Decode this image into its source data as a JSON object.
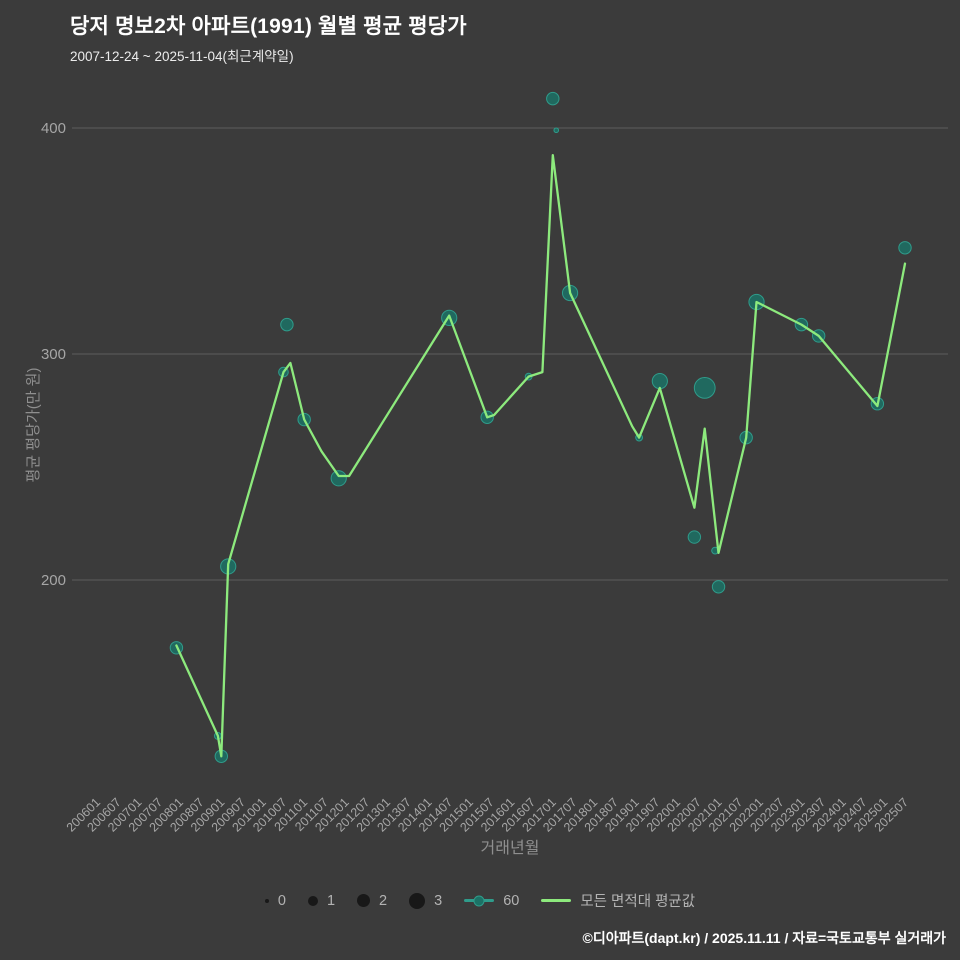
{
  "page": {
    "footer_credit": "©디아파트(dapt.kr) / 2025.11.11 / 자료=국토교통부 실거래가"
  },
  "chart_data": {
    "type": "line-scatter-bubble",
    "title": "당저 명보2차 아파트(1991) 월별 평균 평당가",
    "subtitle": "2007-12-24 ~ 2025-11-04(최근계약일)",
    "xlabel": "거래년월",
    "ylabel": "평균 평당가(만 원)",
    "ylim": [
      100,
      430
    ],
    "y_ticks": [
      200,
      300,
      400
    ],
    "grid": "horizontal",
    "x_ticks": [
      "200601",
      "200607",
      "200701",
      "200707",
      "200801",
      "200807",
      "200901",
      "200907",
      "201001",
      "201007",
      "201101",
      "201107",
      "201201",
      "201207",
      "201301",
      "201307",
      "201401",
      "201407",
      "201501",
      "201507",
      "201601",
      "201607",
      "201701",
      "201707",
      "201801",
      "201807",
      "201901",
      "201907",
      "202001",
      "202007",
      "202101",
      "202107",
      "202201",
      "202207",
      "202301",
      "202307",
      "202401",
      "202407",
      "202501",
      "202507"
    ],
    "legend": {
      "position": "bottom",
      "size_labels": [
        "0",
        "1",
        "2",
        "3"
      ],
      "series_labels": [
        "60",
        "모든 면적대 평균값"
      ]
    },
    "colors": {
      "background": "#3b3b3b",
      "line_green": "#8dea7d",
      "marker_teal_fill": "#1c7266",
      "marker_teal_stroke": "#2f9c8b",
      "grid": "#5d5d5d",
      "tick_text": "#a6a6a6",
      "axis_label": "#8f8f8f",
      "legend_text": "#b3b3b3",
      "legend_bubble": "#181818",
      "title_text": "#ffffff"
    },
    "series": [
      {
        "name": "60",
        "type": "scatter",
        "points": [
          {
            "m": "200712",
            "v": 170,
            "s": 1.5
          },
          {
            "m": "200812",
            "v": 131,
            "s": 0.5
          },
          {
            "m": "200901",
            "v": 122,
            "s": 1.5
          },
          {
            "m": "200903",
            "v": 206,
            "s": 2
          },
          {
            "m": "201007",
            "v": 292,
            "s": 1
          },
          {
            "m": "201008",
            "v": 313,
            "s": 1.5
          },
          {
            "m": "201101",
            "v": 271,
            "s": 1.5
          },
          {
            "m": "201111",
            "v": 245,
            "s": 2
          },
          {
            "m": "201407",
            "v": 316,
            "s": 2
          },
          {
            "m": "201506",
            "v": 272,
            "s": 1.5
          },
          {
            "m": "201606",
            "v": 290,
            "s": 0.5
          },
          {
            "m": "201701",
            "v": 413,
            "s": 1.5
          },
          {
            "m": "201702",
            "v": 399,
            "s": 0.1
          },
          {
            "m": "201706",
            "v": 327,
            "s": 2
          },
          {
            "m": "201902",
            "v": 263,
            "s": 0.5
          },
          {
            "m": "201908",
            "v": 288,
            "s": 2
          },
          {
            "m": "202006",
            "v": 219,
            "s": 1.5
          },
          {
            "m": "202009",
            "v": 285,
            "s": 3
          },
          {
            "m": "202012",
            "v": 213,
            "s": 0.5
          },
          {
            "m": "202101",
            "v": 197,
            "s": 1.5
          },
          {
            "m": "202109",
            "v": 263,
            "s": 1.5
          },
          {
            "m": "202112",
            "v": 323,
            "s": 2
          },
          {
            "m": "202301",
            "v": 313,
            "s": 1.5
          },
          {
            "m": "202306",
            "v": 308,
            "s": 1.5
          },
          {
            "m": "202411",
            "v": 278,
            "s": 1.5
          },
          {
            "m": "202507",
            "v": 347,
            "s": 1.5
          }
        ]
      },
      {
        "name": "모든 면적대 평균값",
        "type": "line",
        "points": [
          {
            "m": "200712",
            "v": 171
          },
          {
            "m": "200812",
            "v": 131
          },
          {
            "m": "200901",
            "v": 122
          },
          {
            "m": "200903",
            "v": 207
          },
          {
            "m": "201007",
            "v": 292
          },
          {
            "m": "201009",
            "v": 296
          },
          {
            "m": "201101",
            "v": 271
          },
          {
            "m": "201106",
            "v": 257
          },
          {
            "m": "201111",
            "v": 246
          },
          {
            "m": "201202",
            "v": 246
          },
          {
            "m": "201407",
            "v": 317
          },
          {
            "m": "201506",
            "v": 272
          },
          {
            "m": "201508",
            "v": 273
          },
          {
            "m": "201606",
            "v": 290
          },
          {
            "m": "201610",
            "v": 292
          },
          {
            "m": "201701",
            "v": 388
          },
          {
            "m": "201706",
            "v": 327
          },
          {
            "m": "201812",
            "v": 268
          },
          {
            "m": "201902",
            "v": 263
          },
          {
            "m": "201908",
            "v": 285
          },
          {
            "m": "202006",
            "v": 232
          },
          {
            "m": "202009",
            "v": 267
          },
          {
            "m": "202101",
            "v": 212
          },
          {
            "m": "202109",
            "v": 263
          },
          {
            "m": "202112",
            "v": 323
          },
          {
            "m": "202301",
            "v": 313
          },
          {
            "m": "202306",
            "v": 308
          },
          {
            "m": "202411",
            "v": 277
          },
          {
            "m": "202507",
            "v": 340
          }
        ]
      }
    ]
  }
}
